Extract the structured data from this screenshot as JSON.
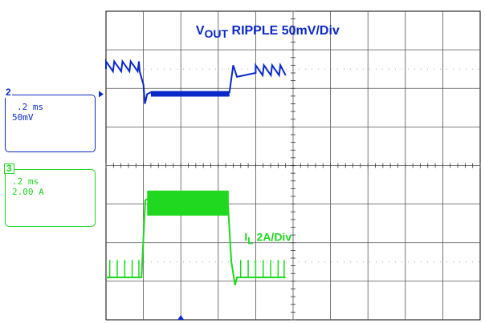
{
  "chart_data": {
    "type": "line",
    "title": "",
    "xlabel": "",
    "ylabel": "",
    "x_divisions": 10,
    "y_divisions": 8,
    "grid": true,
    "annotations": [
      {
        "id": "vout",
        "prefix": "V",
        "subscript": "OUT",
        "text": " RIPPLE  50mV/Div",
        "color": "#0a28c8"
      },
      {
        "id": "il",
        "prefix": "I",
        "subscript": "L",
        "text": "  2A/Div",
        "color": "#1fd81f"
      }
    ],
    "series": [
      {
        "channel": "2",
        "color": "#0a28c8",
        "unit": "div",
        "points": [
          [
            0,
            6.5
          ],
          [
            0.9,
            6.5
          ],
          [
            1.0,
            6.1
          ],
          [
            1.04,
            5.6
          ],
          [
            1.1,
            5.85
          ],
          [
            1.2,
            5.9
          ],
          [
            3.3,
            5.9
          ],
          [
            3.4,
            6.6
          ],
          [
            3.5,
            6.3
          ],
          [
            4.0,
            6.4
          ],
          [
            4.8,
            6.4
          ]
        ]
      },
      {
        "channel": "3",
        "color": "#1fd81f",
        "unit": "div",
        "points": [
          [
            0,
            1.1
          ],
          [
            0.95,
            1.1
          ],
          [
            1.05,
            3.1
          ],
          [
            1.15,
            3.15
          ],
          [
            3.25,
            3.15
          ],
          [
            3.35,
            1.5
          ],
          [
            3.45,
            0.9
          ],
          [
            3.5,
            1.1
          ],
          [
            4.8,
            1.1
          ]
        ]
      }
    ]
  },
  "channel_boxes": [
    {
      "num": "2",
      "time": ".2 ms",
      "scale": "50mV",
      "color": "#0a28c8"
    },
    {
      "num": "3",
      "time": ".2 ms",
      "scale": "2.00 A",
      "color": "#1fd81f"
    }
  ]
}
